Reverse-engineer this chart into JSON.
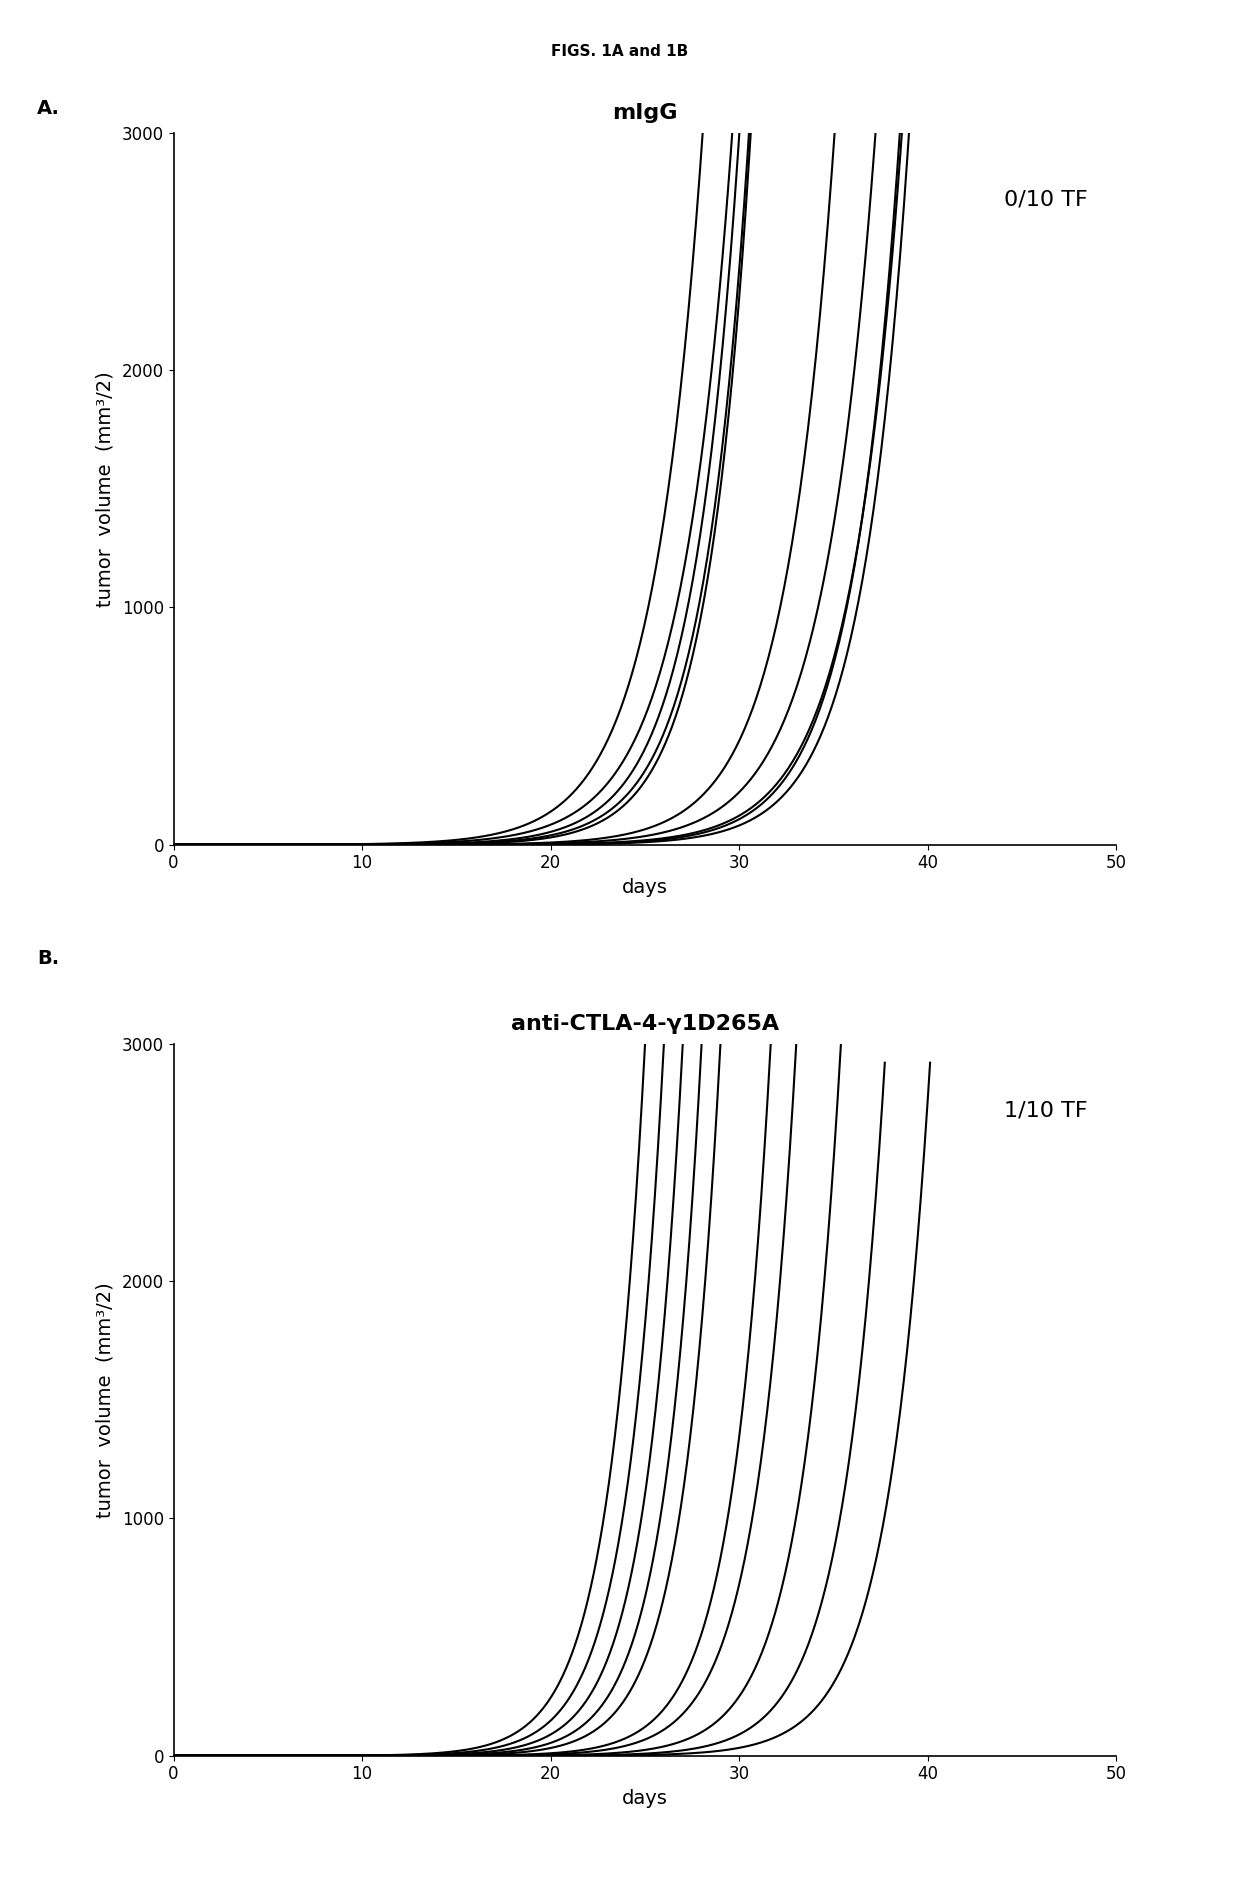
{
  "fig_title": "FIGS. 1A and 1B",
  "panel_A": {
    "label": "A.",
    "title": "mIgG",
    "annotation": "0/10 TF",
    "ylabel": "tumor  volume  (mm³/2)",
    "xlabel": "days",
    "xlim": [
      0,
      50
    ],
    "ylim": [
      0,
      3000
    ],
    "xticks": [
      0,
      10,
      20,
      30,
      40,
      50
    ],
    "yticks": [
      0,
      1000,
      2000,
      3000
    ],
    "curves": [
      {
        "start": 7,
        "rate": 0.38
      },
      {
        "start": 8,
        "rate": 0.37
      },
      {
        "start": 10,
        "rate": 0.4
      },
      {
        "start": 11,
        "rate": 0.41
      },
      {
        "start": 12,
        "rate": 0.43
      },
      {
        "start": 14,
        "rate": 0.38
      },
      {
        "start": 15,
        "rate": 0.36
      },
      {
        "start": 17,
        "rate": 0.37
      },
      {
        "start": 18,
        "rate": 0.39
      },
      {
        "start": 19,
        "rate": 0.4
      }
    ]
  },
  "panel_B": {
    "label": "B.",
    "title": "anti-CTLA-4-γ1D265A",
    "annotation": "1/10 TF",
    "ylabel": "tumor  volume  (mm³/2)",
    "xlabel": "days",
    "xlim": [
      0,
      50
    ],
    "ylim": [
      0,
      3000
    ],
    "xticks": [
      0,
      10,
      20,
      30,
      40,
      50
    ],
    "yticks": [
      0,
      1000,
      2000,
      3000
    ],
    "curves": [
      {
        "start": 9,
        "rate": 0.5
      },
      {
        "start": 10,
        "rate": 0.5
      },
      {
        "start": 11,
        "rate": 0.5
      },
      {
        "start": 12,
        "rate": 0.5
      },
      {
        "start": 13,
        "rate": 0.5
      },
      {
        "start": 15,
        "rate": 0.48
      },
      {
        "start": 16,
        "rate": 0.47
      },
      {
        "start": 18,
        "rate": 0.46
      },
      {
        "start": 20,
        "rate": 0.45
      },
      {
        "start": 22,
        "rate": 0.44
      }
    ]
  },
  "line_color": "#000000",
  "line_width": 1.5,
  "fig_title_fontsize": 11,
  "title_fontsize": 16,
  "label_fontsize": 14,
  "tick_fontsize": 12,
  "annotation_fontsize": 16,
  "panel_label_fontsize": 14
}
